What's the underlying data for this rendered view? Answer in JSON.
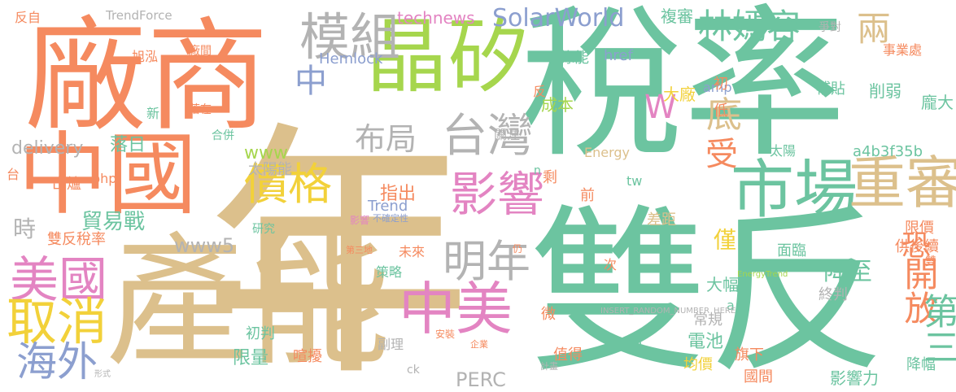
{
  "palette": {
    "background": "#ffffff",
    "orange": "#f58a5f",
    "teal": "#6cc4a0",
    "tan": "#dcc08c",
    "lime": "#a6d64d",
    "pink": "#e384c2",
    "blue": "#8c9fcf",
    "yellow": "#f2d13a",
    "gray": "#b3b3b3"
  },
  "words": [
    {
      "text": "年",
      "color": "tan"
    },
    {
      "text": "稅率",
      "color": "teal"
    },
    {
      "text": "雙反",
      "color": "teal"
    },
    {
      "text": "廠商",
      "color": "orange"
    },
    {
      "text": "產能",
      "color": "tan"
    },
    {
      "text": "中國",
      "color": "orange"
    },
    {
      "text": "晶矽",
      "color": "lime"
    },
    {
      "text": "模組",
      "color": "gray"
    },
    {
      "text": "林嫣容",
      "color": "teal"
    },
    {
      "text": "市場",
      "color": "teal"
    },
    {
      "text": "重審",
      "color": "tan"
    },
    {
      "text": "台灣",
      "color": "gray"
    },
    {
      "text": "影響",
      "color": "pink"
    },
    {
      "text": "價格",
      "color": "yellow"
    },
    {
      "text": "中美",
      "color": "pink"
    },
    {
      "text": "明年",
      "color": "gray"
    },
    {
      "text": "美國",
      "color": "pink"
    },
    {
      "text": "取消",
      "color": "yellow"
    },
    {
      "text": "海外",
      "color": "blue"
    },
    {
      "text": "開放",
      "color": "orange"
    },
    {
      "text": "第三",
      "color": "teal"
    },
    {
      "text": "底",
      "color": "tan"
    },
    {
      "text": "W",
      "color": "pink"
    },
    {
      "text": "布局",
      "color": "gray"
    },
    {
      "text": "受",
      "color": "orange"
    },
    {
      "text": "兩",
      "color": "tan"
    },
    {
      "text": "中",
      "color": "blue"
    },
    {
      "text": "SolarWorld",
      "color": "blue"
    },
    {
      "text": "technews",
      "color": "pink"
    },
    {
      "text": "恐",
      "color": "orange"
    },
    {
      "text": "降至",
      "color": "teal"
    },
    {
      "text": "時",
      "color": "gray"
    },
    {
      "text": "貿易戰",
      "color": "teal"
    },
    {
      "text": "雙反稅率",
      "color": "orange"
    },
    {
      "text": "www5",
      "color": "gray"
    },
    {
      "text": "www",
      "color": "lime"
    },
    {
      "text": "delivery",
      "color": "gray"
    },
    {
      "text": "落日",
      "color": "teal"
    },
    {
      "text": "複審",
      "color": "teal"
    },
    {
      "text": "僅",
      "color": "yellow"
    },
    {
      "text": "大幅",
      "color": "teal"
    },
    {
      "text": "面臨",
      "color": "teal"
    },
    {
      "text": "指出",
      "color": "orange"
    },
    {
      "text": "太陽能",
      "color": "gray"
    },
    {
      "text": "a4b3f35b",
      "color": "teal"
    },
    {
      "text": "出爐",
      "color": "orange"
    },
    {
      "text": "PERC",
      "color": "gray"
    },
    {
      "text": "Trend",
      "color": "blue"
    },
    {
      "text": "Hemlock",
      "color": "blue"
    },
    {
      "text": "TrendForce",
      "color": "gray"
    },
    {
      "text": "限價",
      "color": "orange"
    },
    {
      "text": "影響力",
      "color": "teal"
    },
    {
      "text": "電池",
      "color": "teal"
    },
    {
      "text": "常規",
      "color": "gray"
    },
    {
      "text": "均價",
      "color": "yellow"
    },
    {
      "text": "限量",
      "color": "teal"
    },
    {
      "text": "初判",
      "color": "teal"
    },
    {
      "text": "旗下",
      "color": "orange"
    },
    {
      "text": "國間",
      "color": "orange"
    },
    {
      "text": "降幅",
      "color": "teal"
    },
    {
      "text": "供後續",
      "color": "orange"
    },
    {
      "text": "終判",
      "color": "gray"
    },
    {
      "text": "差距",
      "color": "tan"
    },
    {
      "text": "成本",
      "color": "lime"
    },
    {
      "text": "大廠",
      "color": "yellow"
    },
    {
      "text": "補貼",
      "color": "teal"
    },
    {
      "text": "削弱",
      "color": "teal"
    },
    {
      "text": "龐大",
      "color": "teal"
    },
    {
      "text": "事業處",
      "color": "orange"
    },
    {
      "text": "爭對",
      "color": "gray"
    },
    {
      "text": "綠能",
      "color": "teal"
    },
    {
      "text": "href",
      "color": "blue"
    },
    {
      "text": "amp",
      "color": "blue"
    },
    {
      "text": "Energy",
      "color": "tan"
    },
    {
      "text": "關注",
      "color": "gray"
    },
    {
      "text": "旭泓",
      "color": "orange"
    },
    {
      "text": "反自",
      "color": "orange"
    },
    {
      "text": "研究",
      "color": "teal"
    },
    {
      "text": "策略",
      "color": "teal"
    },
    {
      "text": "未來",
      "color": "orange"
    },
    {
      "text": "副理",
      "color": "gray"
    },
    {
      "text": "值得",
      "color": "orange"
    },
    {
      "text": "喧擾",
      "color": "orange"
    },
    {
      "text": "合併",
      "color": "teal"
    },
    {
      "text": "落在",
      "color": "orange"
    },
    {
      "text": "廠間",
      "color": "orange"
    },
    {
      "text": "新",
      "color": "teal"
    },
    {
      "text": "php",
      "color": "orange"
    },
    {
      "text": "tw",
      "color": "teal"
    },
    {
      "text": "ck",
      "color": "gray"
    },
    {
      "text": "cb",
      "color": "teal"
    },
    {
      "text": "次",
      "color": "orange"
    },
    {
      "text": "微",
      "color": "orange"
    },
    {
      "text": "前",
      "color": "orange"
    },
    {
      "text": "剩",
      "color": "orange"
    },
    {
      "text": "初",
      "color": "orange"
    },
    {
      "text": "低",
      "color": "orange"
    },
    {
      "text": "反",
      "color": "orange"
    },
    {
      "text": "台",
      "color": "orange"
    },
    {
      "text": "a",
      "color": "teal"
    },
    {
      "text": "n",
      "color": "teal"
    },
    {
      "text": "太陽",
      "color": "teal"
    },
    {
      "text": "雙",
      "color": "orange"
    },
    {
      "text": "INSERT_RANDOM_NUMBER_HERE",
      "color": "gray"
    },
    {
      "text": "EnergyTrend",
      "color": "lime"
    },
    {
      "text": "不確定性",
      "color": "blue"
    },
    {
      "text": "仍",
      "color": "orange"
    },
    {
      "text": "第三地",
      "color": "orange"
    },
    {
      "text": "計畫",
      "color": "gray"
    },
    {
      "text": "影響",
      "color": "pink"
    },
    {
      "text": "安裝",
      "color": "orange"
    },
    {
      "text": "企業",
      "color": "orange"
    },
    {
      "text": "形式",
      "color": "gray"
    }
  ]
}
